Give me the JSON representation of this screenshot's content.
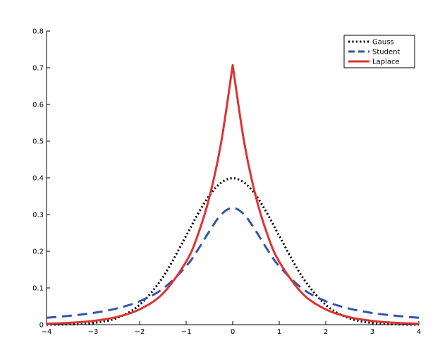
{
  "chart_data": {
    "type": "line",
    "title": "",
    "xlabel": "",
    "ylabel": "",
    "xlim": [
      -4,
      4
    ],
    "ylim": [
      0,
      0.8
    ],
    "x_ticks": [
      -4,
      -3,
      -2,
      -1,
      0,
      1,
      2,
      3,
      4
    ],
    "y_ticks": [
      0,
      0.1,
      0.2,
      0.3,
      0.4,
      0.5,
      0.6,
      0.7,
      0.8
    ],
    "x_tick_labels": [
      "−4",
      "−3",
      "−2",
      "−1",
      "0",
      "1",
      "2",
      "3",
      "4"
    ],
    "y_tick_labels": [
      "0",
      "0.1",
      "0.2",
      "0.3",
      "0.4",
      "0.5",
      "0.6",
      "0.7",
      "0.8"
    ],
    "grid": false,
    "legend_position": "top-right",
    "x": [
      -4,
      -3.5,
      -3,
      -2.5,
      -2,
      -1.5,
      -1,
      -0.75,
      -0.5,
      -0.25,
      0,
      0.25,
      0.5,
      0.75,
      1,
      1.5,
      2,
      2.5,
      3,
      3.5,
      4
    ],
    "series": [
      {
        "name": "Gauss",
        "color": "#000000",
        "style": "dotted",
        "values": [
          0.0001,
          0.0009,
          0.0044,
          0.0175,
          0.054,
          0.1295,
          0.242,
          0.3011,
          0.3521,
          0.3867,
          0.3989,
          0.3867,
          0.3521,
          0.3011,
          0.242,
          0.1295,
          0.054,
          0.0175,
          0.0044,
          0.0009,
          0.0001
        ]
      },
      {
        "name": "Student",
        "color": "#3355aa",
        "style": "dashed",
        "values": [
          0.0187,
          0.0243,
          0.0318,
          0.0439,
          0.0637,
          0.0979,
          0.1592,
          0.2037,
          0.2546,
          0.2996,
          0.3183,
          0.2996,
          0.2546,
          0.2037,
          0.1592,
          0.0979,
          0.0637,
          0.0439,
          0.0318,
          0.0243,
          0.0187
        ]
      },
      {
        "name": "Laplace",
        "color": "#dd3333",
        "style": "solid",
        "values": [
          0.0025,
          0.005,
          0.0102,
          0.0206,
          0.0417,
          0.0846,
          0.1715,
          0.2441,
          0.3475,
          0.4948,
          0.7071,
          0.4948,
          0.3475,
          0.2441,
          0.1715,
          0.0846,
          0.0417,
          0.0206,
          0.0102,
          0.005,
          0.0025
        ]
      }
    ]
  }
}
